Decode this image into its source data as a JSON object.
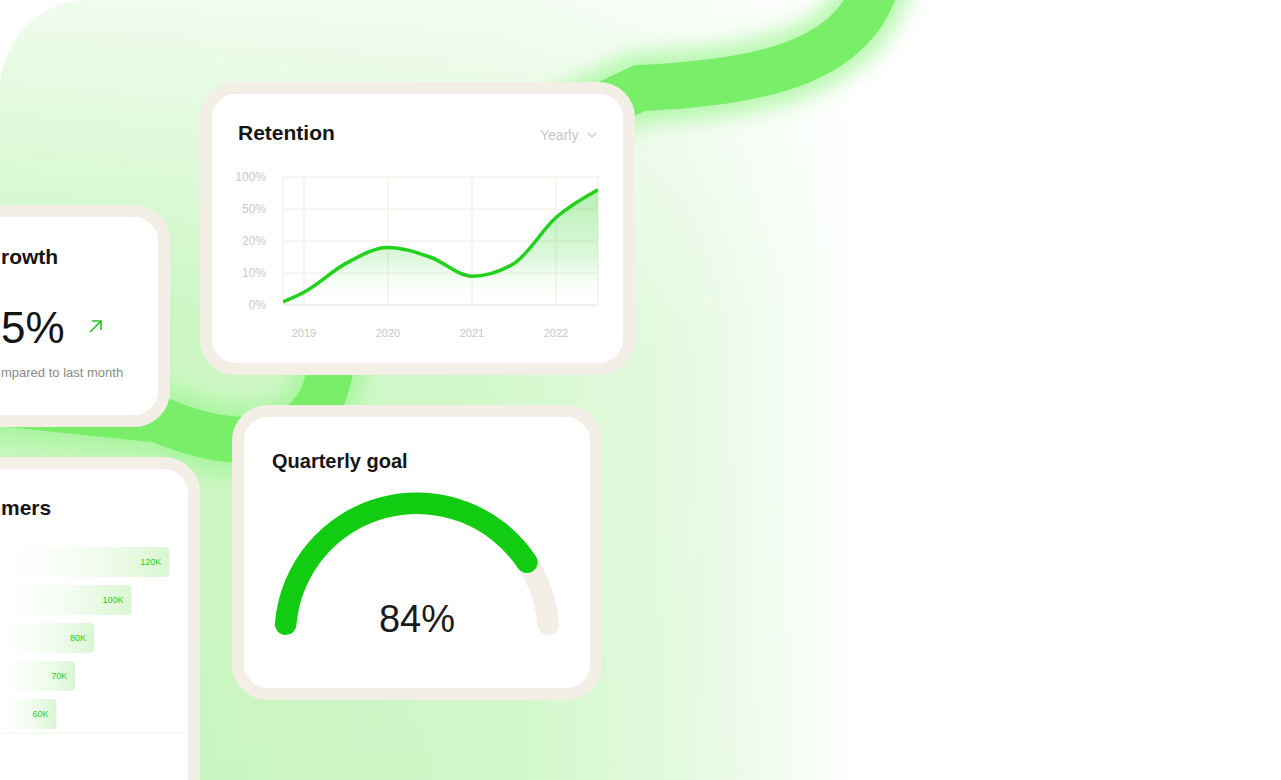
{
  "chart_data": [
    {
      "type": "line",
      "title": "Retention",
      "subtitle": "Yearly",
      "x": [
        2018.75,
        2019,
        2019.5,
        2020,
        2020.5,
        2021,
        2021.5,
        2022,
        2022.5
      ],
      "values": [
        1,
        4,
        13,
        18,
        15,
        9,
        13,
        42,
        80
      ],
      "xlim": [
        2018.75,
        2022.5
      ],
      "xticks": [
        2019,
        2020,
        2021,
        2022
      ],
      "ylim": [
        0,
        100
      ],
      "yticks": [
        {
          "value": 0,
          "label": "0%"
        },
        {
          "value": 10,
          "label": "10%"
        },
        {
          "value": 20,
          "label": "20%"
        },
        {
          "value": 50,
          "label": "50%"
        },
        {
          "value": 100,
          "label": "100%"
        }
      ],
      "grid": true,
      "color": "#22d11c"
    },
    {
      "type": "stat",
      "title": "rowth",
      "subtitle": "mpared to last month",
      "values": [
        5
      ],
      "value_labels": [
        "5%"
      ],
      "color": "#22c51c"
    },
    {
      "type": "gauge",
      "title": "Quarterly goal",
      "values": [
        84
      ],
      "value_labels": [
        "84%"
      ],
      "ylim": [
        0,
        100
      ],
      "color": "#12cc12"
    },
    {
      "type": "bar",
      "orientation": "horizontal",
      "title": "mers",
      "categories": [
        null,
        null,
        null,
        null,
        null
      ],
      "values": [
        120000,
        100000,
        80000,
        70000,
        60000
      ],
      "value_labels": [
        "120K",
        "100K",
        "80K",
        "70K",
        "60K"
      ],
      "xlim": [
        30000,
        130000
      ],
      "data_labels": true,
      "tick_labels": false,
      "color": "#2ccc22"
    }
  ]
}
